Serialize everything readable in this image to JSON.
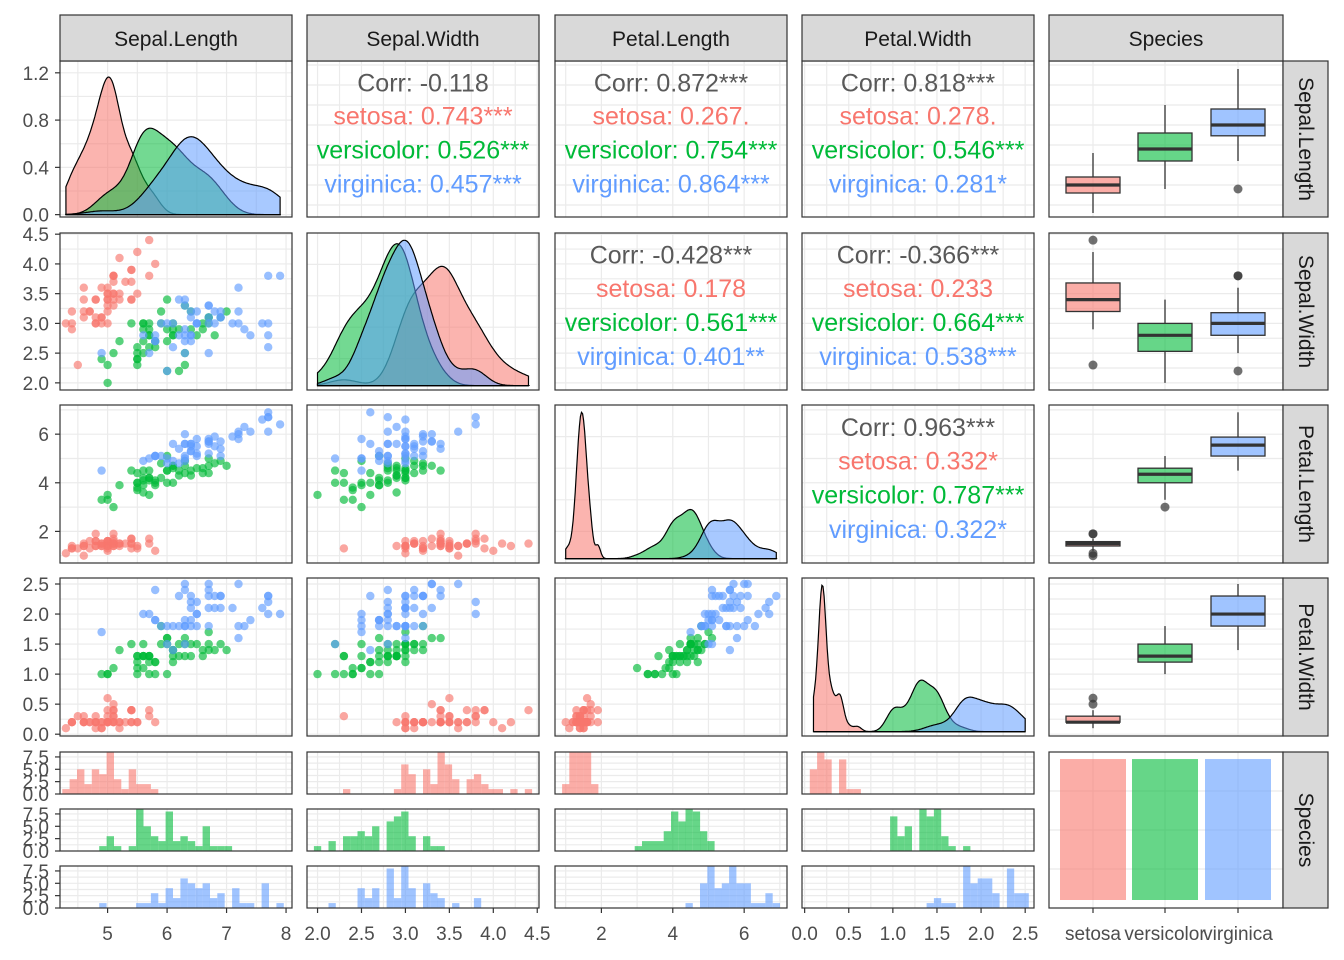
{
  "chart_data": {
    "type": "scatter",
    "title": "",
    "variables": [
      "Sepal.Length",
      "Sepal.Width",
      "Petal.Length",
      "Petal.Width",
      "Species"
    ],
    "species": [
      "setosa",
      "versicolor",
      "virginica"
    ],
    "species_colors": {
      "setosa": "#F8766D",
      "versicolor": "#00BA38",
      "virginica": "#619CFF"
    },
    "panel_background": "#ffffff",
    "strip_fill": "#D9D9D9",
    "grid": true,
    "axes": {
      "Sepal.Length": {
        "range": [
          4.2,
          8.1
        ],
        "ticks": [
          5,
          6,
          7,
          8
        ],
        "labels": [
          "5",
          "6",
          "7",
          "8"
        ]
      },
      "Sepal.Width": {
        "range": [
          1.88,
          4.52
        ],
        "ticks": [
          2.0,
          2.5,
          3.0,
          3.5,
          4.0,
          4.5
        ],
        "labels": [
          "2.0",
          "2.5",
          "3.0",
          "3.5",
          "4.0",
          "4.5"
        ]
      },
      "Petal.Length": {
        "range": [
          0.7,
          7.2
        ],
        "ticks": [
          2,
          4,
          6
        ],
        "labels": [
          "2",
          "4",
          "6"
        ]
      },
      "Petal.Width": {
        "range": [
          -0.03,
          2.6
        ],
        "ticks": [
          0.0,
          0.5,
          1.0,
          1.5,
          2.0,
          2.5
        ],
        "labels": [
          "0.0",
          "0.5",
          "1.0",
          "1.5",
          "2.0",
          "2.5"
        ]
      },
      "Species": {
        "labels": [
          "setosa",
          "versicolor",
          "virginica"
        ]
      }
    },
    "density_y_axis": {
      "range": [
        -0.02,
        1.3
      ],
      "ticks": [
        0.0,
        0.4,
        0.8,
        1.2
      ],
      "labels": [
        "0.0",
        "0.4",
        "0.8",
        "1.2"
      ]
    },
    "hist_count_axis": {
      "range": [
        0,
        8.5
      ],
      "ticks": [
        0.0,
        2.5,
        5.0,
        7.5
      ],
      "labels": [
        "0.0",
        "2.5",
        "5.0",
        "7.5"
      ]
    },
    "correlations": {
      "Sepal.Length|Sepal.Width": {
        "overall": "Corr: -0.118",
        "setosa": "setosa: 0.743***",
        "versicolor": "versicolor: 0.526***",
        "virginica": "virginica: 0.457***"
      },
      "Sepal.Length|Petal.Length": {
        "overall": "Corr: 0.872***",
        "setosa": "setosa: 0.267.",
        "versicolor": "versicolor: 0.754***",
        "virginica": "virginica: 0.864***"
      },
      "Sepal.Length|Petal.Width": {
        "overall": "Corr: 0.818***",
        "setosa": "setosa: 0.278.",
        "versicolor": "versicolor: 0.546***",
        "virginica": "virginica: 0.281*"
      },
      "Sepal.Width|Petal.Length": {
        "overall": "Corr: -0.428***",
        "setosa": "setosa: 0.178",
        "versicolor": "versicolor: 0.561***",
        "virginica": "virginica: 0.401**"
      },
      "Sepal.Width|Petal.Width": {
        "overall": "Corr: -0.366***",
        "setosa": "setosa: 0.233",
        "versicolor": "versicolor: 0.664***",
        "virginica": "virginica: 0.538***"
      },
      "Petal.Length|Petal.Width": {
        "overall": "Corr: 0.963***",
        "setosa": "setosa: 0.332*",
        "versicolor": "versicolor: 0.787***",
        "virginica": "virginica: 0.322*"
      }
    },
    "boxplots": {
      "Sepal.Length": {
        "setosa": {
          "low": 4.3,
          "q1": 4.8,
          "median": 5.0,
          "q3": 5.2,
          "high": 5.8,
          "outliers": []
        },
        "versicolor": {
          "low": 4.9,
          "q1": 5.6,
          "median": 5.9,
          "q3": 6.3,
          "high": 7.0,
          "outliers": []
        },
        "virginica": {
          "low": 5.6,
          "q1": 6.23,
          "median": 6.5,
          "q3": 6.9,
          "high": 7.9,
          "outliers": [
            4.9
          ]
        }
      },
      "Sepal.Width": {
        "setosa": {
          "low": 2.9,
          "q1": 3.2,
          "median": 3.4,
          "q3": 3.68,
          "high": 4.2,
          "outliers": [
            4.4,
            2.3
          ]
        },
        "versicolor": {
          "low": 2.0,
          "q1": 2.53,
          "median": 2.8,
          "q3": 3.0,
          "high": 3.4,
          "outliers": []
        },
        "virginica": {
          "low": 2.5,
          "q1": 2.8,
          "median": 3.0,
          "q3": 3.18,
          "high": 3.6,
          "outliers": [
            3.8,
            3.8,
            2.2
          ]
        }
      },
      "Petal.Length": {
        "setosa": {
          "low": 1.2,
          "q1": 1.4,
          "median": 1.5,
          "q3": 1.58,
          "high": 1.7,
          "outliers": [
            1.0,
            1.1,
            1.9,
            1.9
          ]
        },
        "versicolor": {
          "low": 3.3,
          "q1": 4.0,
          "median": 4.35,
          "q3": 4.6,
          "high": 5.1,
          "outliers": [
            3.0
          ]
        },
        "virginica": {
          "low": 4.5,
          "q1": 5.1,
          "median": 5.55,
          "q3": 5.88,
          "high": 6.9,
          "outliers": []
        }
      },
      "Petal.Width": {
        "setosa": {
          "low": 0.1,
          "q1": 0.2,
          "median": 0.2,
          "q3": 0.3,
          "high": 0.4,
          "outliers": [
            0.5,
            0.6
          ]
        },
        "versicolor": {
          "low": 1.0,
          "q1": 1.2,
          "median": 1.3,
          "q3": 1.5,
          "high": 1.8,
          "outliers": []
        },
        "virginica": {
          "low": 1.4,
          "q1": 1.8,
          "median": 2.0,
          "q3": 2.3,
          "high": 2.5,
          "outliers": []
        }
      }
    },
    "species_counts": {
      "setosa": 50,
      "versicolor": 50,
      "virginica": 50
    },
    "points": {
      "setosa": [
        [
          5.1,
          3.5,
          1.4,
          0.2
        ],
        [
          4.9,
          3.0,
          1.4,
          0.2
        ],
        [
          4.7,
          3.2,
          1.3,
          0.2
        ],
        [
          4.6,
          3.1,
          1.5,
          0.2
        ],
        [
          5.0,
          3.6,
          1.4,
          0.2
        ],
        [
          5.4,
          3.9,
          1.7,
          0.4
        ],
        [
          4.6,
          3.4,
          1.4,
          0.3
        ],
        [
          5.0,
          3.4,
          1.5,
          0.2
        ],
        [
          4.4,
          2.9,
          1.4,
          0.2
        ],
        [
          4.9,
          3.1,
          1.5,
          0.1
        ],
        [
          5.4,
          3.7,
          1.5,
          0.2
        ],
        [
          4.8,
          3.4,
          1.6,
          0.2
        ],
        [
          4.8,
          3.0,
          1.4,
          0.1
        ],
        [
          4.3,
          3.0,
          1.1,
          0.1
        ],
        [
          5.8,
          4.0,
          1.2,
          0.2
        ],
        [
          5.7,
          4.4,
          1.5,
          0.4
        ],
        [
          5.4,
          3.9,
          1.3,
          0.4
        ],
        [
          5.1,
          3.5,
          1.4,
          0.3
        ],
        [
          5.7,
          3.8,
          1.7,
          0.3
        ],
        [
          5.1,
          3.8,
          1.5,
          0.3
        ],
        [
          5.4,
          3.4,
          1.7,
          0.2
        ],
        [
          5.1,
          3.7,
          1.5,
          0.4
        ],
        [
          4.6,
          3.6,
          1.0,
          0.2
        ],
        [
          5.1,
          3.3,
          1.7,
          0.5
        ],
        [
          4.8,
          3.4,
          1.9,
          0.2
        ],
        [
          5.0,
          3.0,
          1.6,
          0.2
        ],
        [
          5.0,
          3.4,
          1.6,
          0.4
        ],
        [
          5.2,
          3.5,
          1.5,
          0.2
        ],
        [
          5.2,
          3.4,
          1.4,
          0.2
        ],
        [
          4.7,
          3.2,
          1.6,
          0.2
        ],
        [
          4.8,
          3.1,
          1.6,
          0.2
        ],
        [
          5.4,
          3.4,
          1.5,
          0.4
        ],
        [
          5.2,
          4.1,
          1.5,
          0.1
        ],
        [
          5.5,
          4.2,
          1.4,
          0.2
        ],
        [
          4.9,
          3.1,
          1.5,
          0.2
        ],
        [
          5.0,
          3.2,
          1.2,
          0.2
        ],
        [
          5.5,
          3.5,
          1.3,
          0.2
        ],
        [
          4.9,
          3.6,
          1.4,
          0.1
        ],
        [
          4.4,
          3.0,
          1.3,
          0.2
        ],
        [
          5.1,
          3.4,
          1.5,
          0.2
        ],
        [
          5.0,
          3.5,
          1.3,
          0.3
        ],
        [
          4.5,
          2.3,
          1.3,
          0.3
        ],
        [
          4.4,
          3.2,
          1.3,
          0.2
        ],
        [
          5.0,
          3.5,
          1.6,
          0.6
        ],
        [
          5.1,
          3.8,
          1.9,
          0.4
        ],
        [
          4.8,
          3.0,
          1.4,
          0.3
        ],
        [
          5.1,
          3.8,
          1.6,
          0.2
        ],
        [
          4.6,
          3.2,
          1.4,
          0.2
        ],
        [
          5.3,
          3.7,
          1.5,
          0.2
        ],
        [
          5.0,
          3.3,
          1.4,
          0.2
        ]
      ],
      "versicolor": [
        [
          7.0,
          3.2,
          4.7,
          1.4
        ],
        [
          6.4,
          3.2,
          4.5,
          1.5
        ],
        [
          6.9,
          3.1,
          4.9,
          1.5
        ],
        [
          5.5,
          2.3,
          4.0,
          1.3
        ],
        [
          6.5,
          2.8,
          4.6,
          1.5
        ],
        [
          5.7,
          2.8,
          4.5,
          1.3
        ],
        [
          6.3,
          3.3,
          4.7,
          1.6
        ],
        [
          4.9,
          2.4,
          3.3,
          1.0
        ],
        [
          6.6,
          2.9,
          4.6,
          1.3
        ],
        [
          5.2,
          2.7,
          3.9,
          1.4
        ],
        [
          5.0,
          2.0,
          3.5,
          1.0
        ],
        [
          5.9,
          3.0,
          4.2,
          1.5
        ],
        [
          6.0,
          2.2,
          4.0,
          1.0
        ],
        [
          6.1,
          2.9,
          4.7,
          1.4
        ],
        [
          5.6,
          2.9,
          3.6,
          1.3
        ],
        [
          6.7,
          3.1,
          4.4,
          1.4
        ],
        [
          5.6,
          3.0,
          4.5,
          1.5
        ],
        [
          5.8,
          2.7,
          4.1,
          1.0
        ],
        [
          6.2,
          2.2,
          4.5,
          1.5
        ],
        [
          5.6,
          2.5,
          3.9,
          1.1
        ],
        [
          5.9,
          3.2,
          4.8,
          1.8
        ],
        [
          6.1,
          2.8,
          4.0,
          1.3
        ],
        [
          6.3,
          2.5,
          4.9,
          1.5
        ],
        [
          6.1,
          2.8,
          4.7,
          1.2
        ],
        [
          6.4,
          2.9,
          4.3,
          1.3
        ],
        [
          6.6,
          3.0,
          4.4,
          1.4
        ],
        [
          6.8,
          2.8,
          4.8,
          1.4
        ],
        [
          6.7,
          3.0,
          5.0,
          1.7
        ],
        [
          6.0,
          2.9,
          4.5,
          1.5
        ],
        [
          5.7,
          2.6,
          3.5,
          1.0
        ],
        [
          5.5,
          2.4,
          3.8,
          1.1
        ],
        [
          5.5,
          2.4,
          3.7,
          1.0
        ],
        [
          5.8,
          2.7,
          3.9,
          1.2
        ],
        [
          6.0,
          2.7,
          5.1,
          1.6
        ],
        [
          5.4,
          3.0,
          4.5,
          1.5
        ],
        [
          6.0,
          3.4,
          4.5,
          1.6
        ],
        [
          6.7,
          3.1,
          4.7,
          1.5
        ],
        [
          6.3,
          2.3,
          4.4,
          1.3
        ],
        [
          5.6,
          3.0,
          4.1,
          1.3
        ],
        [
          5.5,
          2.5,
          4.0,
          1.3
        ],
        [
          5.5,
          2.6,
          4.4,
          1.2
        ],
        [
          6.1,
          3.0,
          4.6,
          1.4
        ],
        [
          5.8,
          2.6,
          4.0,
          1.2
        ],
        [
          5.0,
          2.3,
          3.3,
          1.0
        ],
        [
          5.6,
          2.7,
          4.2,
          1.3
        ],
        [
          5.7,
          3.0,
          4.2,
          1.2
        ],
        [
          5.7,
          2.9,
          4.2,
          1.3
        ],
        [
          6.2,
          2.9,
          4.3,
          1.3
        ],
        [
          5.1,
          2.5,
          3.0,
          1.1
        ],
        [
          5.7,
          2.8,
          4.1,
          1.3
        ]
      ],
      "virginica": [
        [
          6.3,
          3.3,
          6.0,
          2.5
        ],
        [
          5.8,
          2.7,
          5.1,
          1.9
        ],
        [
          7.1,
          3.0,
          5.9,
          2.1
        ],
        [
          6.3,
          2.9,
          5.6,
          1.8
        ],
        [
          6.5,
          3.0,
          5.8,
          2.2
        ],
        [
          7.6,
          3.0,
          6.6,
          2.1
        ],
        [
          4.9,
          2.5,
          4.5,
          1.7
        ],
        [
          7.3,
          2.9,
          6.3,
          1.8
        ],
        [
          6.7,
          2.5,
          5.8,
          1.8
        ],
        [
          7.2,
          3.6,
          6.1,
          2.5
        ],
        [
          6.5,
          3.2,
          5.1,
          2.0
        ],
        [
          6.4,
          2.7,
          5.3,
          1.9
        ],
        [
          6.8,
          3.0,
          5.5,
          2.1
        ],
        [
          5.7,
          2.5,
          5.0,
          2.0
        ],
        [
          5.8,
          2.8,
          5.1,
          2.4
        ],
        [
          6.4,
          3.2,
          5.3,
          2.3
        ],
        [
          6.5,
          3.0,
          5.5,
          1.8
        ],
        [
          7.7,
          3.8,
          6.7,
          2.2
        ],
        [
          7.7,
          2.6,
          6.9,
          2.3
        ],
        [
          6.0,
          2.2,
          5.0,
          1.5
        ],
        [
          6.9,
          3.2,
          5.7,
          2.3
        ],
        [
          5.6,
          2.8,
          4.9,
          2.0
        ],
        [
          7.7,
          2.8,
          6.7,
          2.0
        ],
        [
          6.3,
          2.7,
          4.9,
          1.8
        ],
        [
          6.7,
          3.3,
          5.7,
          2.1
        ],
        [
          7.2,
          3.2,
          6.0,
          1.8
        ],
        [
          6.2,
          2.8,
          4.8,
          1.8
        ],
        [
          6.1,
          3.0,
          4.9,
          1.8
        ],
        [
          6.4,
          2.8,
          5.6,
          2.1
        ],
        [
          7.2,
          3.0,
          5.8,
          1.6
        ],
        [
          7.4,
          2.8,
          6.1,
          1.9
        ],
        [
          7.9,
          3.8,
          6.4,
          2.0
        ],
        [
          6.4,
          2.8,
          5.6,
          2.2
        ],
        [
          6.3,
          2.8,
          5.1,
          1.5
        ],
        [
          6.1,
          2.6,
          5.6,
          1.4
        ],
        [
          7.7,
          3.0,
          6.1,
          2.3
        ],
        [
          6.3,
          3.4,
          5.6,
          2.4
        ],
        [
          6.4,
          3.1,
          5.5,
          1.8
        ],
        [
          6.0,
          3.0,
          4.8,
          1.8
        ],
        [
          6.9,
          3.1,
          5.4,
          2.1
        ],
        [
          6.7,
          3.1,
          5.6,
          2.4
        ],
        [
          6.9,
          3.1,
          5.1,
          2.3
        ],
        [
          5.8,
          2.7,
          5.1,
          1.9
        ],
        [
          6.8,
          3.2,
          5.9,
          2.3
        ],
        [
          6.7,
          3.3,
          5.7,
          2.5
        ],
        [
          6.7,
          3.0,
          5.2,
          2.3
        ],
        [
          6.3,
          2.5,
          5.0,
          1.9
        ],
        [
          6.5,
          3.0,
          5.2,
          2.0
        ],
        [
          6.2,
          3.4,
          5.4,
          2.3
        ],
        [
          5.9,
          3.0,
          5.1,
          1.8
        ]
      ]
    }
  }
}
